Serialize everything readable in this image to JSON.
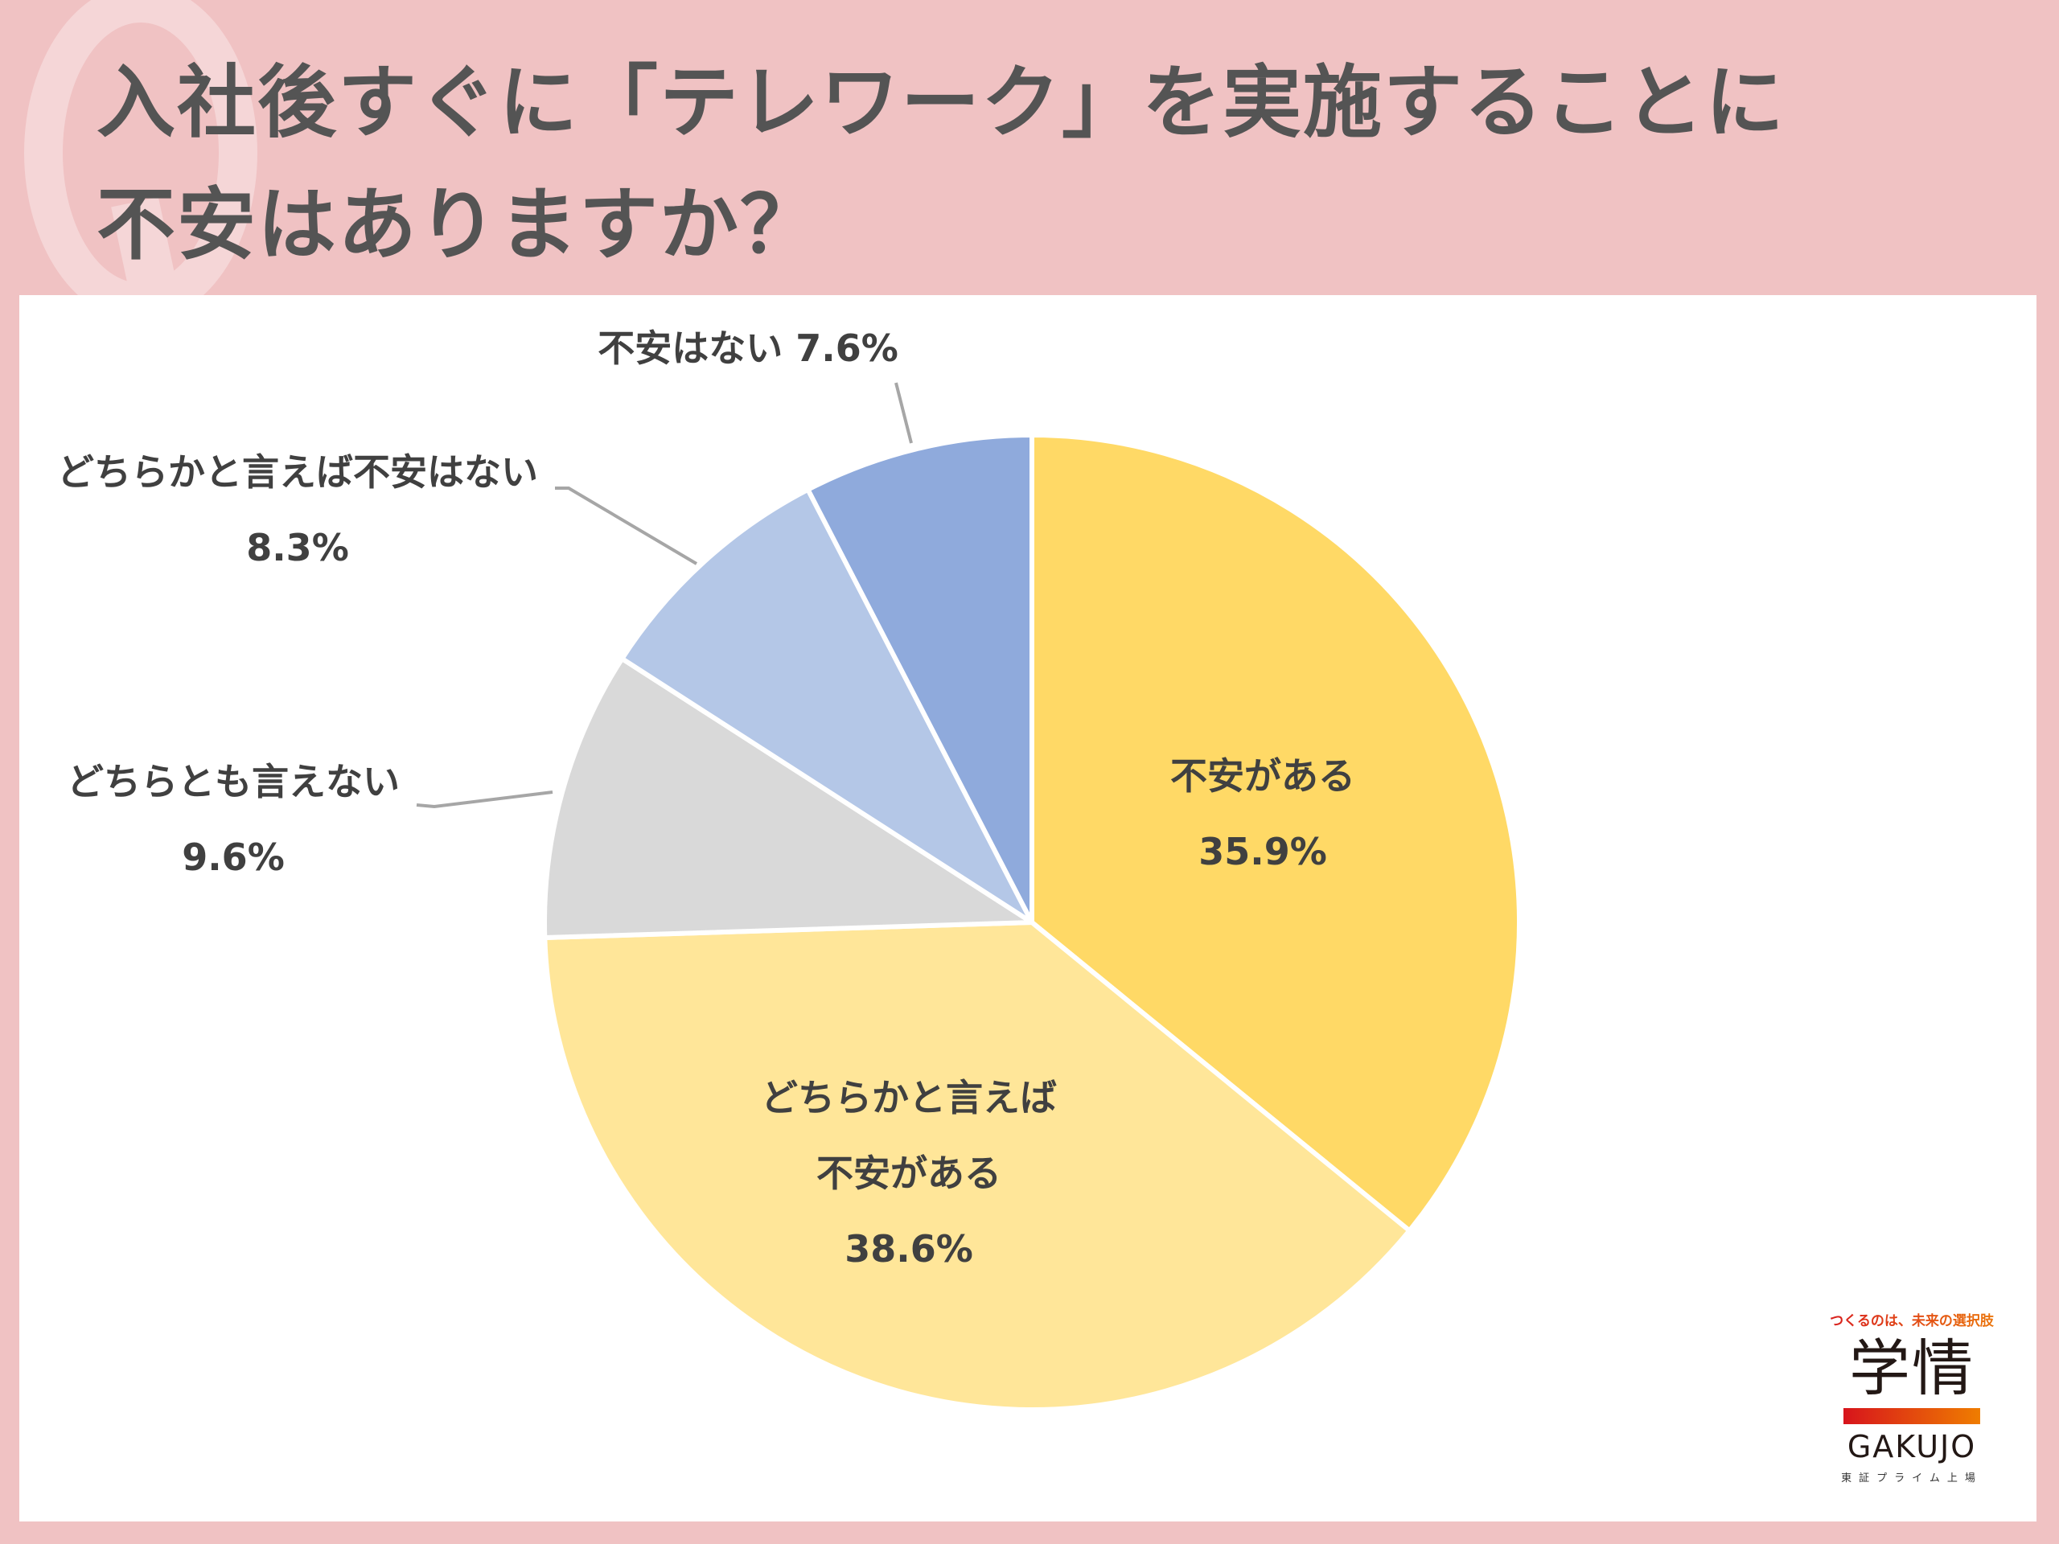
{
  "header": {
    "question_mark": "Q",
    "title_line1": "入社後すぐに「テレワーク」を実施することに",
    "title_line2": "不安はありますか？"
  },
  "chart_data": {
    "type": "pie",
    "title": "入社後すぐに「テレワーク」を実施することに不安はありますか？",
    "start_angle_deg": 0,
    "direction": "clockwise",
    "categories": [
      "不安がある",
      "どちらかと言えば不安がある",
      "どちらとも言えない",
      "どちらかと言えば不安はない",
      "不安はない"
    ],
    "values": [
      35.9,
      38.6,
      9.6,
      8.3,
      7.6
    ],
    "unit": "%",
    "colors": [
      "#ffd966",
      "#ffe699",
      "#d9d9d9",
      "#b4c7e7",
      "#8faadc"
    ],
    "labels": [
      {
        "lines": [
          "不安がある",
          "35.9%"
        ],
        "position": "inside"
      },
      {
        "lines": [
          "どちらかと言えば",
          "不安がある",
          "38.6%"
        ],
        "position": "inside"
      },
      {
        "lines": [
          "どちらとも言えない",
          "9.6%"
        ],
        "position": "outside",
        "leader_line": true
      },
      {
        "lines": [
          "どちらかと言えば不安はない",
          "8.3%"
        ],
        "position": "outside",
        "leader_line": true
      },
      {
        "lines": [
          "不安はない 7.6%"
        ],
        "position": "outside",
        "leader_line": true
      }
    ],
    "legend": "none"
  },
  "logo": {
    "tagline": "つくるのは、未来の選択肢",
    "name_kanji": "学情",
    "name_en": "GAKUJO",
    "subtitle": "東証プライム上場"
  }
}
